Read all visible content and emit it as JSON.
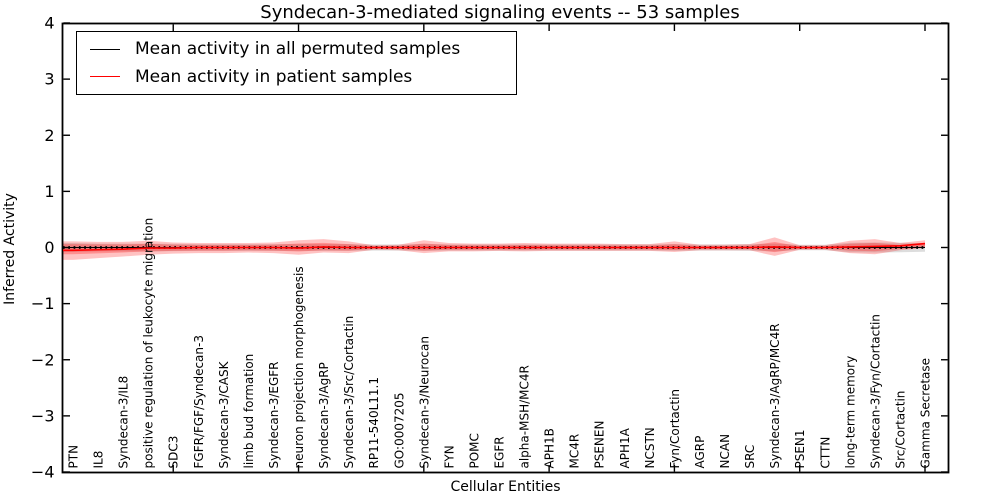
{
  "chart_data": {
    "type": "line",
    "title": "Syndecan-3-mediated signaling events -- 53 samples",
    "xlabel": "Cellular Entities",
    "ylabel": "Inferred Activity",
    "ylim": [
      -4,
      4
    ],
    "yticks": [
      4,
      3,
      2,
      1,
      0,
      -1,
      -2,
      -3,
      -4
    ],
    "grid": false,
    "legend_position": "upper left",
    "colors": {
      "permuted": "#000000",
      "patient": "#ff0000",
      "patient_band": "#ff0000",
      "permuted_band": "#aaaaaa"
    },
    "legend": [
      {
        "label": "Mean activity in all permuted samples",
        "color": "#000000"
      },
      {
        "label": "Mean activity in patient samples",
        "color": "#ff0000"
      }
    ],
    "entities": [
      "PTN",
      "IL8",
      "Syndecan-3/IL8",
      "positive regulation of leukocyte migration",
      "SDC3",
      "FGFR/FGF/Syndecan-3",
      "Syndecan-3/CASK",
      "limb bud formation",
      "Syndecan-3/EGFR",
      "neuron projection morphogenesis",
      "Syndecan-3/AgRP",
      "Syndecan-3/Src/Cortactin",
      "RP11-540L11.1",
      "GO:0007205",
      "Syndecan-3/Neurocan",
      "FYN",
      "POMC",
      "EGFR",
      "alpha-MSH/MC4R",
      "APH1B",
      "MC4R",
      "PSENEN",
      "APH1A",
      "NCSTN",
      "Fyn/Cortactin",
      "AGRP",
      "NCAN",
      "SRC",
      "Syndecan-3/AgRP/MC4R",
      "PSEN1",
      "CTTN",
      "long-term memory",
      "Syndecan-3/Fyn/Cortactin",
      "Src/Cortactin",
      "Gamma Secretase"
    ],
    "series": [
      {
        "name": "Mean activity in all permuted samples",
        "color": "#000000",
        "values": [
          0,
          0,
          0,
          0,
          0,
          0,
          0,
          0,
          0,
          0,
          0,
          0,
          0,
          0,
          0,
          0,
          0,
          0,
          0,
          0,
          0,
          0,
          0,
          0,
          0,
          0,
          0,
          0,
          0,
          0,
          0,
          0,
          0,
          0,
          0
        ]
      },
      {
        "name": "Mean activity in patient samples",
        "color": "#ff0000",
        "values": [
          -0.05,
          -0.04,
          -0.03,
          -0.01,
          -0.01,
          0,
          0,
          0,
          0,
          -0.01,
          0.01,
          0,
          0,
          0,
          0,
          0,
          0,
          0,
          0,
          0,
          0,
          0,
          0,
          0,
          0,
          0,
          0,
          0,
          0.01,
          0,
          0,
          0.01,
          0.02,
          0.03,
          0.07
        ]
      }
    ],
    "patient_band": {
      "upper": [
        0.11,
        0.1,
        0.1,
        0.12,
        0.09,
        0.08,
        0.08,
        0.08,
        0.09,
        0.13,
        0.15,
        0.11,
        0.04,
        0.05,
        0.13,
        0.08,
        0.07,
        0.07,
        0.08,
        0.07,
        0.07,
        0.07,
        0.06,
        0.06,
        0.11,
        0.05,
        0.05,
        0.06,
        0.18,
        0.04,
        0.04,
        0.12,
        0.15,
        0.08,
        0.13
      ],
      "lower": [
        -0.22,
        -0.19,
        -0.16,
        -0.13,
        -0.11,
        -0.1,
        -0.1,
        -0.09,
        -0.1,
        -0.13,
        -0.09,
        -0.1,
        -0.04,
        -0.05,
        -0.1,
        -0.07,
        -0.07,
        -0.06,
        -0.07,
        -0.06,
        -0.06,
        -0.06,
        -0.06,
        -0.06,
        -0.08,
        -0.05,
        -0.05,
        -0.05,
        -0.15,
        -0.04,
        -0.04,
        -0.1,
        -0.12,
        -0.05,
        -0.01
      ]
    },
    "permuted_band": {
      "half": [
        0.08,
        0.07,
        0.07,
        0.07,
        0.065,
        0.06,
        0.06,
        0.06,
        0.06,
        0.06,
        0.06,
        0.06,
        0.055,
        0.055,
        0.06,
        0.055,
        0.055,
        0.055,
        0.055,
        0.055,
        0.055,
        0.055,
        0.055,
        0.055,
        0.06,
        0.055,
        0.055,
        0.06,
        0.07,
        0.05,
        0.05,
        0.085,
        0.09,
        0.085,
        0.075
      ]
    },
    "x_major_tick_indices": [
      4,
      9,
      14,
      19,
      24,
      29,
      34
    ]
  }
}
